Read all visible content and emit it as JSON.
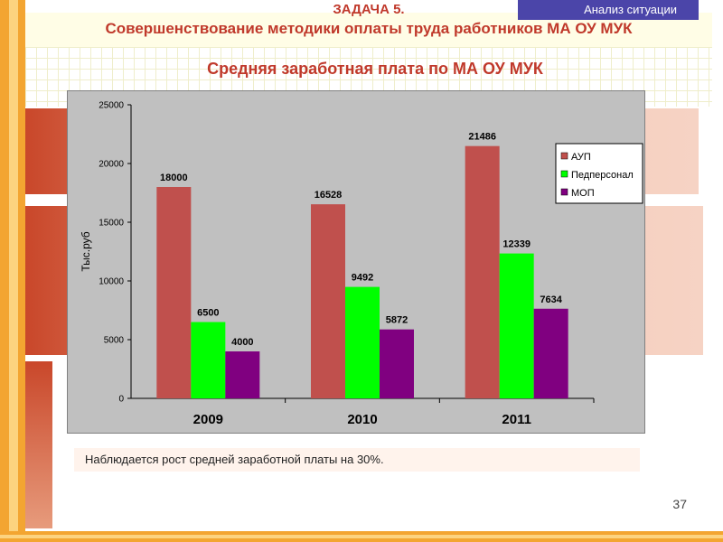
{
  "header": {
    "tag": "Анализ ситуации",
    "task": "ЗАДАЧА 5.",
    "subtitle": "Совершенствование методики оплаты труда работников МА ОУ МУК"
  },
  "chart_heading": "Средняя заработная плата по МА ОУ МУК",
  "chart_data": {
    "type": "bar",
    "categories": [
      "2009",
      "2010",
      "2011"
    ],
    "series": [
      {
        "name": "АУП",
        "values": [
          18000,
          16528,
          21486
        ],
        "color": "#c0504d"
      },
      {
        "name": "Педперсонал",
        "values": [
          6500,
          9492,
          12339
        ],
        "color": "#00ff00"
      },
      {
        "name": "МОП",
        "values": [
          4000,
          5872,
          7634
        ],
        "color": "#800080"
      }
    ],
    "ylabel": "Тыс.руб",
    "ylim": [
      0,
      25000
    ],
    "yticks": [
      "0",
      "5000",
      "10000",
      "15000",
      "20000",
      "25000"
    ],
    "legend_position": "right",
    "grid": false
  },
  "note": "Наблюдается рост средней заработной платы на 30%.",
  "page_number": "37"
}
